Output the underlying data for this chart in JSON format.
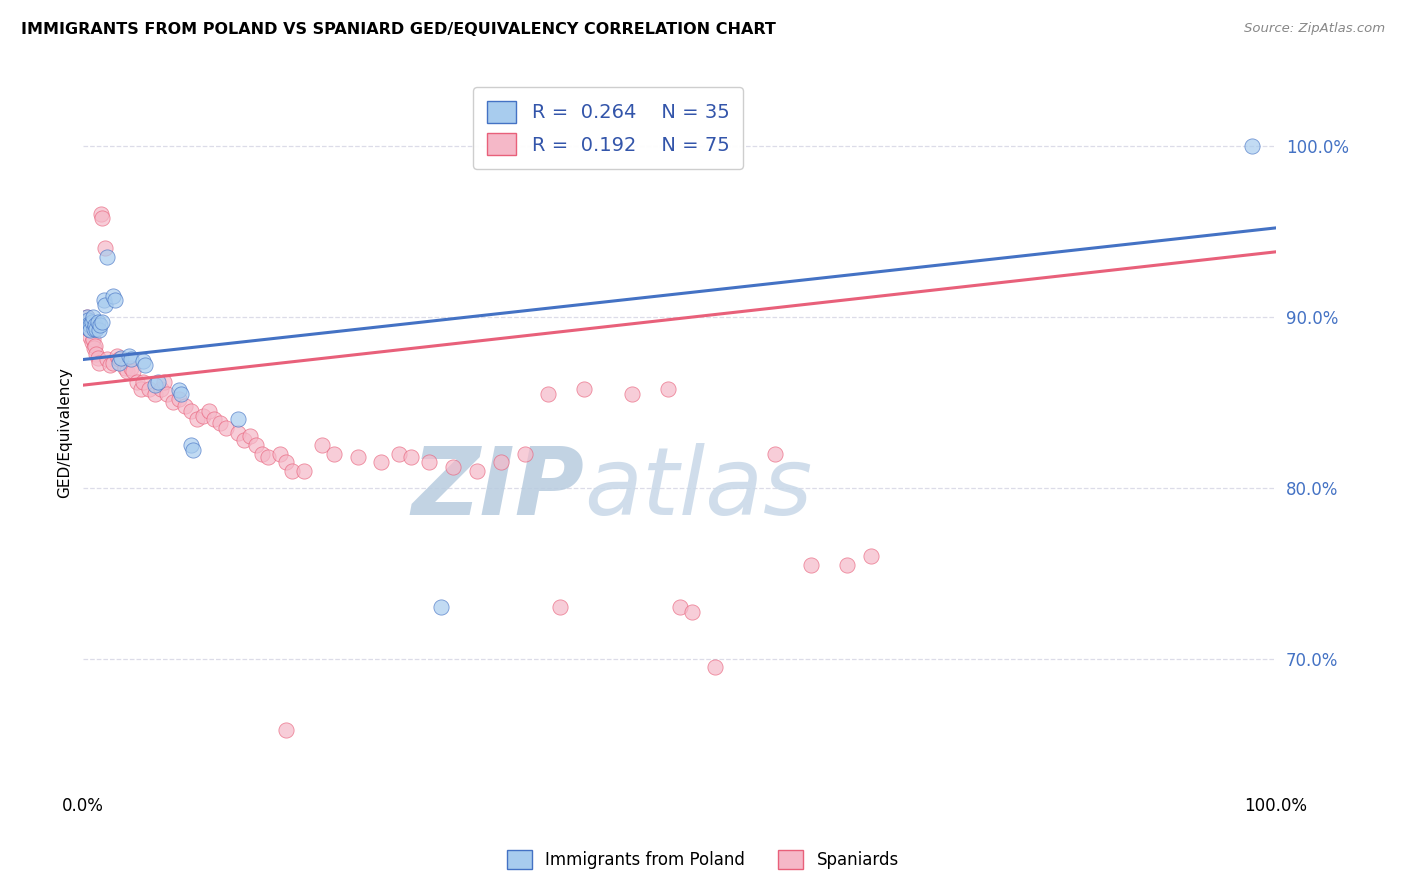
{
  "title": "IMMIGRANTS FROM POLAND VS SPANIARD GED/EQUIVALENCY CORRELATION CHART",
  "source": "Source: ZipAtlas.com",
  "ylabel": "GED/Equivalency",
  "ytick_labels": [
    "70.0%",
    "80.0%",
    "90.0%",
    "100.0%"
  ],
  "ytick_values": [
    0.7,
    0.8,
    0.9,
    1.0
  ],
  "xlim": [
    0.0,
    1.0
  ],
  "ylim": [
    0.625,
    1.04
  ],
  "legend_blue_r": "0.264",
  "legend_blue_n": "35",
  "legend_pink_r": "0.192",
  "legend_pink_n": "75",
  "legend_label_blue": "Immigrants from Poland",
  "legend_label_pink": "Spaniards",
  "blue_color": "#A8CCEE",
  "pink_color": "#F5B8C8",
  "blue_line_color": "#4472C4",
  "pink_line_color": "#E8607A",
  "blue_scatter": [
    [
      0.003,
      0.9
    ],
    [
      0.004,
      0.898
    ],
    [
      0.005,
      0.896
    ],
    [
      0.005,
      0.893
    ],
    [
      0.006,
      0.895
    ],
    [
      0.006,
      0.892
    ],
    [
      0.007,
      0.897
    ],
    [
      0.008,
      0.9
    ],
    [
      0.009,
      0.893
    ],
    [
      0.01,
      0.895
    ],
    [
      0.011,
      0.893
    ],
    [
      0.012,
      0.897
    ],
    [
      0.013,
      0.892
    ],
    [
      0.014,
      0.895
    ],
    [
      0.016,
      0.897
    ],
    [
      0.017,
      0.91
    ],
    [
      0.018,
      0.907
    ],
    [
      0.02,
      0.935
    ],
    [
      0.025,
      0.912
    ],
    [
      0.027,
      0.91
    ],
    [
      0.03,
      0.873
    ],
    [
      0.032,
      0.876
    ],
    [
      0.038,
      0.877
    ],
    [
      0.04,
      0.875
    ],
    [
      0.05,
      0.874
    ],
    [
      0.052,
      0.872
    ],
    [
      0.06,
      0.86
    ],
    [
      0.063,
      0.862
    ],
    [
      0.08,
      0.857
    ],
    [
      0.082,
      0.855
    ],
    [
      0.09,
      0.825
    ],
    [
      0.092,
      0.822
    ],
    [
      0.13,
      0.84
    ],
    [
      0.3,
      0.73
    ],
    [
      0.98,
      1.0
    ]
  ],
  "pink_scatter": [
    [
      0.003,
      0.9
    ],
    [
      0.004,
      0.897
    ],
    [
      0.005,
      0.893
    ],
    [
      0.006,
      0.888
    ],
    [
      0.007,
      0.885
    ],
    [
      0.008,
      0.887
    ],
    [
      0.009,
      0.882
    ],
    [
      0.01,
      0.883
    ],
    [
      0.011,
      0.878
    ],
    [
      0.012,
      0.876
    ],
    [
      0.013,
      0.873
    ],
    [
      0.015,
      0.96
    ],
    [
      0.016,
      0.958
    ],
    [
      0.018,
      0.94
    ],
    [
      0.02,
      0.875
    ],
    [
      0.022,
      0.872
    ],
    [
      0.025,
      0.873
    ],
    [
      0.028,
      0.877
    ],
    [
      0.03,
      0.875
    ],
    [
      0.035,
      0.87
    ],
    [
      0.037,
      0.868
    ],
    [
      0.04,
      0.87
    ],
    [
      0.042,
      0.868
    ],
    [
      0.045,
      0.862
    ],
    [
      0.048,
      0.858
    ],
    [
      0.05,
      0.862
    ],
    [
      0.055,
      0.858
    ],
    [
      0.06,
      0.855
    ],
    [
      0.065,
      0.858
    ],
    [
      0.068,
      0.862
    ],
    [
      0.07,
      0.855
    ],
    [
      0.075,
      0.85
    ],
    [
      0.08,
      0.852
    ],
    [
      0.085,
      0.848
    ],
    [
      0.09,
      0.845
    ],
    [
      0.095,
      0.84
    ],
    [
      0.1,
      0.842
    ],
    [
      0.105,
      0.845
    ],
    [
      0.11,
      0.84
    ],
    [
      0.115,
      0.838
    ],
    [
      0.12,
      0.835
    ],
    [
      0.13,
      0.832
    ],
    [
      0.135,
      0.828
    ],
    [
      0.14,
      0.83
    ],
    [
      0.145,
      0.825
    ],
    [
      0.15,
      0.82
    ],
    [
      0.155,
      0.818
    ],
    [
      0.165,
      0.82
    ],
    [
      0.17,
      0.815
    ],
    [
      0.175,
      0.81
    ],
    [
      0.185,
      0.81
    ],
    [
      0.2,
      0.825
    ],
    [
      0.21,
      0.82
    ],
    [
      0.23,
      0.818
    ],
    [
      0.25,
      0.815
    ],
    [
      0.265,
      0.82
    ],
    [
      0.275,
      0.818
    ],
    [
      0.29,
      0.815
    ],
    [
      0.31,
      0.812
    ],
    [
      0.33,
      0.81
    ],
    [
      0.35,
      0.815
    ],
    [
      0.37,
      0.82
    ],
    [
      0.39,
      0.855
    ],
    [
      0.42,
      0.858
    ],
    [
      0.46,
      0.855
    ],
    [
      0.49,
      0.858
    ],
    [
      0.5,
      0.73
    ],
    [
      0.51,
      0.727
    ],
    [
      0.53,
      0.695
    ],
    [
      0.58,
      0.82
    ],
    [
      0.61,
      0.755
    ],
    [
      0.64,
      0.755
    ],
    [
      0.66,
      0.76
    ],
    [
      0.17,
      0.658
    ],
    [
      0.4,
      0.73
    ]
  ],
  "blue_line_x": [
    0.0,
    1.0
  ],
  "blue_line_y": [
    0.875,
    0.952
  ],
  "pink_line_x": [
    0.0,
    1.0
  ],
  "pink_line_y": [
    0.86,
    0.938
  ],
  "grid_color": "#DCDCE8",
  "background_color": "#FFFFFF",
  "watermark_zip": "ZIP",
  "watermark_atlas": "atlas",
  "watermark_color_zip": "#B8CCDF",
  "watermark_color_atlas": "#C8D8E8"
}
